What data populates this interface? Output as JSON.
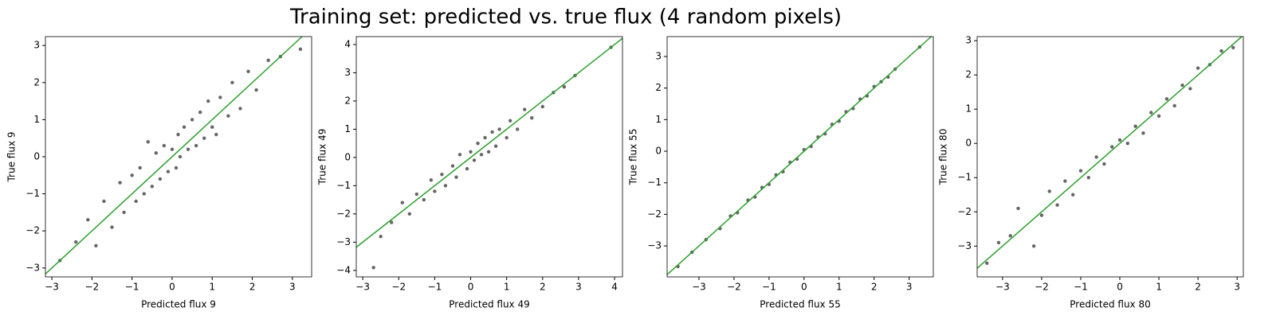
{
  "title": "Training set: predicted vs. true flux (4 random pixels)",
  "chart_data": [
    {
      "type": "scatter",
      "xlabel": "Predicted flux 9",
      "ylabel": "True flux 9",
      "color": "#000000",
      "identity_line": {
        "color": "#2ca02c"
      },
      "xlim": [
        -3.16,
        3.48
      ],
      "ylim": [
        -3.24,
        3.24
      ],
      "xticks": [
        {
          "value": -3,
          "label": "−3"
        },
        {
          "value": -2,
          "label": "−2"
        },
        {
          "value": -1,
          "label": "−1"
        },
        0,
        1,
        2,
        3
      ],
      "yticks": [
        {
          "value": -3,
          "label": "−3"
        },
        {
          "value": -2,
          "label": "−2"
        },
        {
          "value": -1,
          "label": "−1"
        },
        0,
        1,
        2,
        3
      ],
      "x": [
        -2.8,
        -2.4,
        -2.1,
        -1.9,
        -1.7,
        -1.5,
        -1.3,
        -1.2,
        -1.0,
        -0.9,
        -0.8,
        -0.7,
        -0.6,
        -0.5,
        -0.4,
        -0.3,
        -0.2,
        -0.1,
        0,
        0.1,
        0.15,
        0.2,
        0.3,
        0.4,
        0.5,
        0.6,
        0.7,
        0.8,
        0.9,
        1.0,
        1.1,
        1.2,
        1.4,
        1.5,
        1.7,
        1.9,
        2.1,
        2.4,
        2.7,
        3.2
      ],
      "values": [
        -2.8,
        -2.3,
        -1.7,
        -2.4,
        -1.2,
        -1.9,
        -0.7,
        -1.5,
        -0.5,
        -1.2,
        -0.3,
        -1.0,
        0.4,
        -0.8,
        0.1,
        -0.6,
        0.3,
        -0.4,
        0.2,
        -0.3,
        0.6,
        0.0,
        0.8,
        0.2,
        1.0,
        0.3,
        1.2,
        0.5,
        1.5,
        0.8,
        0.6,
        1.6,
        1.1,
        2.0,
        1.3,
        2.3,
        1.8,
        2.6,
        2.7,
        2.9
      ]
    },
    {
      "type": "scatter",
      "xlabel": "Predicted flux 49",
      "ylabel": "True flux 49",
      "color": "#000000",
      "identity_line": {
        "color": "#2ca02c"
      },
      "xlim": [
        -3.18,
        4.22
      ],
      "ylim": [
        -4.23,
        4.28
      ],
      "xticks": [
        {
          "value": -3,
          "label": "−3"
        },
        {
          "value": -2,
          "label": "−2"
        },
        {
          "value": -1,
          "label": "−1"
        },
        0,
        1,
        2,
        3,
        4
      ],
      "yticks": [
        {
          "value": -4,
          "label": "−4"
        },
        {
          "value": -3,
          "label": "−3"
        },
        {
          "value": -2,
          "label": "−2"
        },
        {
          "value": -1,
          "label": "−1"
        },
        0,
        1,
        2,
        3,
        4
      ],
      "x": [
        -2.7,
        -2.5,
        -2.2,
        -1.9,
        -1.7,
        -1.5,
        -1.3,
        -1.1,
        -1.0,
        -0.8,
        -0.7,
        -0.5,
        -0.4,
        -0.3,
        -0.1,
        0,
        0.1,
        0.2,
        0.3,
        0.4,
        0.5,
        0.6,
        0.7,
        0.8,
        1.0,
        1.1,
        1.3,
        1.5,
        1.7,
        2.0,
        2.3,
        2.6,
        2.9,
        3.9
      ],
      "values": [
        -3.9,
        -2.8,
        -2.3,
        -1.6,
        -2.0,
        -1.3,
        -1.5,
        -0.8,
        -1.2,
        -0.6,
        -1.0,
        -0.3,
        -0.7,
        0.1,
        -0.4,
        0.2,
        -0.1,
        0.5,
        0.1,
        0.7,
        0.2,
        0.9,
        0.4,
        1.0,
        0.7,
        1.3,
        1.0,
        1.7,
        1.4,
        1.8,
        2.3,
        2.5,
        2.9,
        3.9
      ]
    },
    {
      "type": "scatter",
      "xlabel": "Predicted flux 55",
      "ylabel": "True flux 55",
      "color": "#000000",
      "identity_line": {
        "color": "#2ca02c"
      },
      "xlim": [
        -3.91,
        3.69
      ],
      "ylim": [
        -3.98,
        3.63
      ],
      "xticks": [
        {
          "value": -3,
          "label": "−3"
        },
        {
          "value": -2,
          "label": "−2"
        },
        {
          "value": -1,
          "label": "−1"
        },
        0,
        1,
        2,
        3
      ],
      "yticks": [
        {
          "value": -3,
          "label": "−3"
        },
        {
          "value": -2,
          "label": "−2"
        },
        {
          "value": -1,
          "label": "−1"
        },
        0,
        1,
        2,
        3
      ],
      "x": [
        -3.6,
        -3.2,
        -2.8,
        -2.4,
        -2.1,
        -1.9,
        -1.6,
        -1.4,
        -1.2,
        -1.0,
        -0.8,
        -0.6,
        -0.4,
        -0.2,
        0,
        0.2,
        0.4,
        0.6,
        0.8,
        1.0,
        1.2,
        1.4,
        1.6,
        1.8,
        2.0,
        2.2,
        2.4,
        2.6,
        3.3
      ],
      "values": [
        -3.65,
        -3.2,
        -2.8,
        -2.45,
        -2.05,
        -1.95,
        -1.55,
        -1.45,
        -1.15,
        -1.05,
        -0.75,
        -0.65,
        -0.35,
        -0.25,
        0.05,
        0.15,
        0.45,
        0.55,
        0.85,
        0.95,
        1.25,
        1.35,
        1.65,
        1.75,
        2.05,
        2.2,
        2.35,
        2.6,
        3.3
      ]
    },
    {
      "type": "scatter",
      "xlabel": "Predicted flux 80",
      "ylabel": "True flux 80",
      "color": "#000000",
      "identity_line": {
        "color": "#2ca02c"
      },
      "xlim": [
        -3.65,
        3.16
      ],
      "ylim": [
        -3.9,
        3.12
      ],
      "xticks": [
        {
          "value": -3,
          "label": "−3"
        },
        {
          "value": -2,
          "label": "−2"
        },
        {
          "value": -1,
          "label": "−1"
        },
        0,
        1,
        2,
        3
      ],
      "yticks": [
        {
          "value": -3,
          "label": "−3"
        },
        {
          "value": -2,
          "label": "−2"
        },
        {
          "value": -1,
          "label": "−1"
        },
        0,
        1,
        2,
        3
      ],
      "x": [
        -3.4,
        -3.1,
        -2.8,
        -2.6,
        -2.2,
        -2.0,
        -1.8,
        -1.6,
        -1.4,
        -1.2,
        -1.0,
        -0.8,
        -0.6,
        -0.4,
        -0.2,
        0,
        0.2,
        0.4,
        0.6,
        0.8,
        1.0,
        1.2,
        1.4,
        1.6,
        1.8,
        2.0,
        2.3,
        2.6,
        2.9
      ],
      "values": [
        -3.5,
        -2.9,
        -2.7,
        -1.9,
        -3.0,
        -2.1,
        -1.4,
        -1.8,
        -1.1,
        -1.5,
        -0.8,
        -1.0,
        -0.4,
        -0.6,
        -0.1,
        0.1,
        0.0,
        0.5,
        0.3,
        0.9,
        0.8,
        1.3,
        1.1,
        1.7,
        1.6,
        2.2,
        2.3,
        2.7,
        2.8
      ]
    }
  ]
}
